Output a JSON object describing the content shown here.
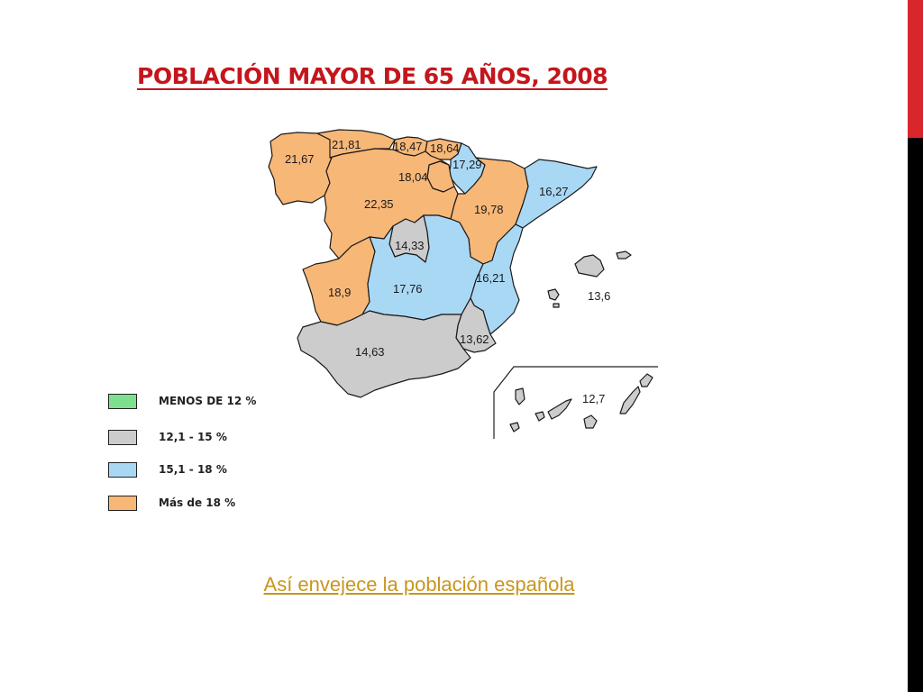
{
  "slide": {
    "title": "POBLACIÓN MAYOR DE 65 AÑOS, 2008",
    "link_text": "Así envejece la población española"
  },
  "colors": {
    "menos_12": "#7ee08e",
    "de_12_15": "#cccccc",
    "de_15_18": "#a9d8f5",
    "mas_18": "#f7b777",
    "accent_red": "#d8262c",
    "title_red": "#c4161c",
    "link_gold": "#c8961e"
  },
  "legend": [
    {
      "label": "MENOS DE 12 %",
      "color": "#7ee08e"
    },
    {
      "label": "12,1 - 15 %",
      "color": "#cccccc"
    },
    {
      "label": "15,1 - 18 %",
      "color": "#a9d8f5"
    },
    {
      "label": "Más de 18 %",
      "color": "#f7b777"
    }
  ],
  "regions": [
    {
      "name": "galicia",
      "value": "21,67",
      "class": "Más de 18 %"
    },
    {
      "name": "asturias",
      "value": "21,81",
      "class": "Más de 18 %"
    },
    {
      "name": "cantabria",
      "value": "18,47",
      "class": "Más de 18 %"
    },
    {
      "name": "pais-vasco",
      "value": "18,64",
      "class": "Más de 18 %"
    },
    {
      "name": "navarra",
      "value": "17,29",
      "class": "15,1 - 18 %"
    },
    {
      "name": "la-rioja",
      "value": "18,04",
      "class": "Más de 18 %"
    },
    {
      "name": "castilla-y-leon",
      "value": "22,35",
      "class": "Más de 18 %"
    },
    {
      "name": "aragon",
      "value": "19,78",
      "class": "Más de 18 %"
    },
    {
      "name": "cataluna",
      "value": "16,27",
      "class": "15,1 - 18 %"
    },
    {
      "name": "madrid",
      "value": "14,33",
      "class": "12,1 - 15 %"
    },
    {
      "name": "extremadura",
      "value": "18,9",
      "class": "Más de 18 %"
    },
    {
      "name": "castilla-la-mancha",
      "value": "17,76",
      "class": "15,1 - 18 %"
    },
    {
      "name": "comunidad-valenciana",
      "value": "16,21",
      "class": "15,1 - 18 %"
    },
    {
      "name": "baleares",
      "value": "13,6",
      "class": "12,1 - 15 %"
    },
    {
      "name": "murcia",
      "value": "13,62",
      "class": "12,1 - 15 %"
    },
    {
      "name": "andalucia",
      "value": "14,63",
      "class": "12,1 - 15 %"
    },
    {
      "name": "canarias",
      "value": "12,7",
      "class": "12,1 - 15 %"
    }
  ]
}
